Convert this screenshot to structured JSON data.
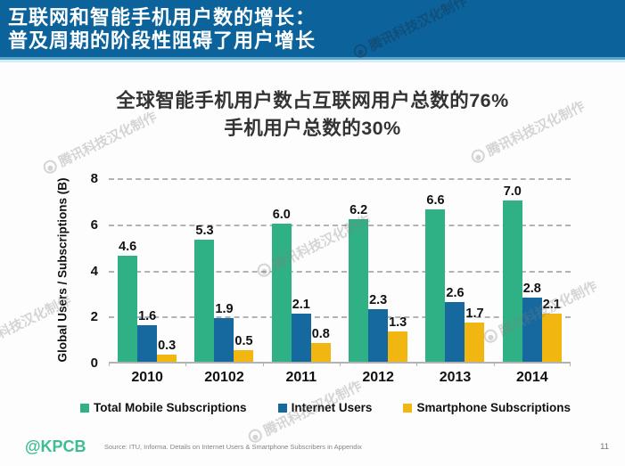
{
  "banner": {
    "line1": "互联网和智能手机用户数的增长：",
    "line2": "普及周期的阶段性阻碍了用户增长",
    "background_color": "#0c639b"
  },
  "subtitle": {
    "line1": "全球智能手机用户数占互联网用户总数的76%",
    "line2": "手机用户总数的30%"
  },
  "chart_data": {
    "type": "bar",
    "title": "",
    "categories": [
      "2010",
      "20102",
      "2011",
      "2012",
      "2013",
      "2014"
    ],
    "series": [
      {
        "name": "Total Mobile Subscriptions",
        "color": "#2fb185",
        "values": [
          4.6,
          5.3,
          6.0,
          6.2,
          6.6,
          7.0
        ]
      },
      {
        "name": "Internet Users",
        "color": "#15699f",
        "values": [
          1.6,
          1.9,
          2.1,
          2.3,
          2.6,
          2.8
        ]
      },
      {
        "name": "Smartphone Subscriptions",
        "color": "#f2b610",
        "values": [
          0.3,
          0.5,
          0.8,
          1.3,
          1.7,
          2.1
        ]
      }
    ],
    "xlabel": "",
    "ylabel": "Global Users / Subscriptions (B)",
    "yticks": [
      0,
      2,
      4,
      6,
      8
    ],
    "ylim": [
      0,
      8
    ],
    "grid": "horizontal dashed",
    "legend_position": "bottom"
  },
  "watermark": {
    "text": "腾讯科技汉化制作"
  },
  "footer": {
    "logo": "@KPCB",
    "logo_color": "#3ebd92",
    "source": "Source: ITU, Informa. Details on Internet Users & Smartphone Subscribers in Appendix",
    "page": "11"
  }
}
